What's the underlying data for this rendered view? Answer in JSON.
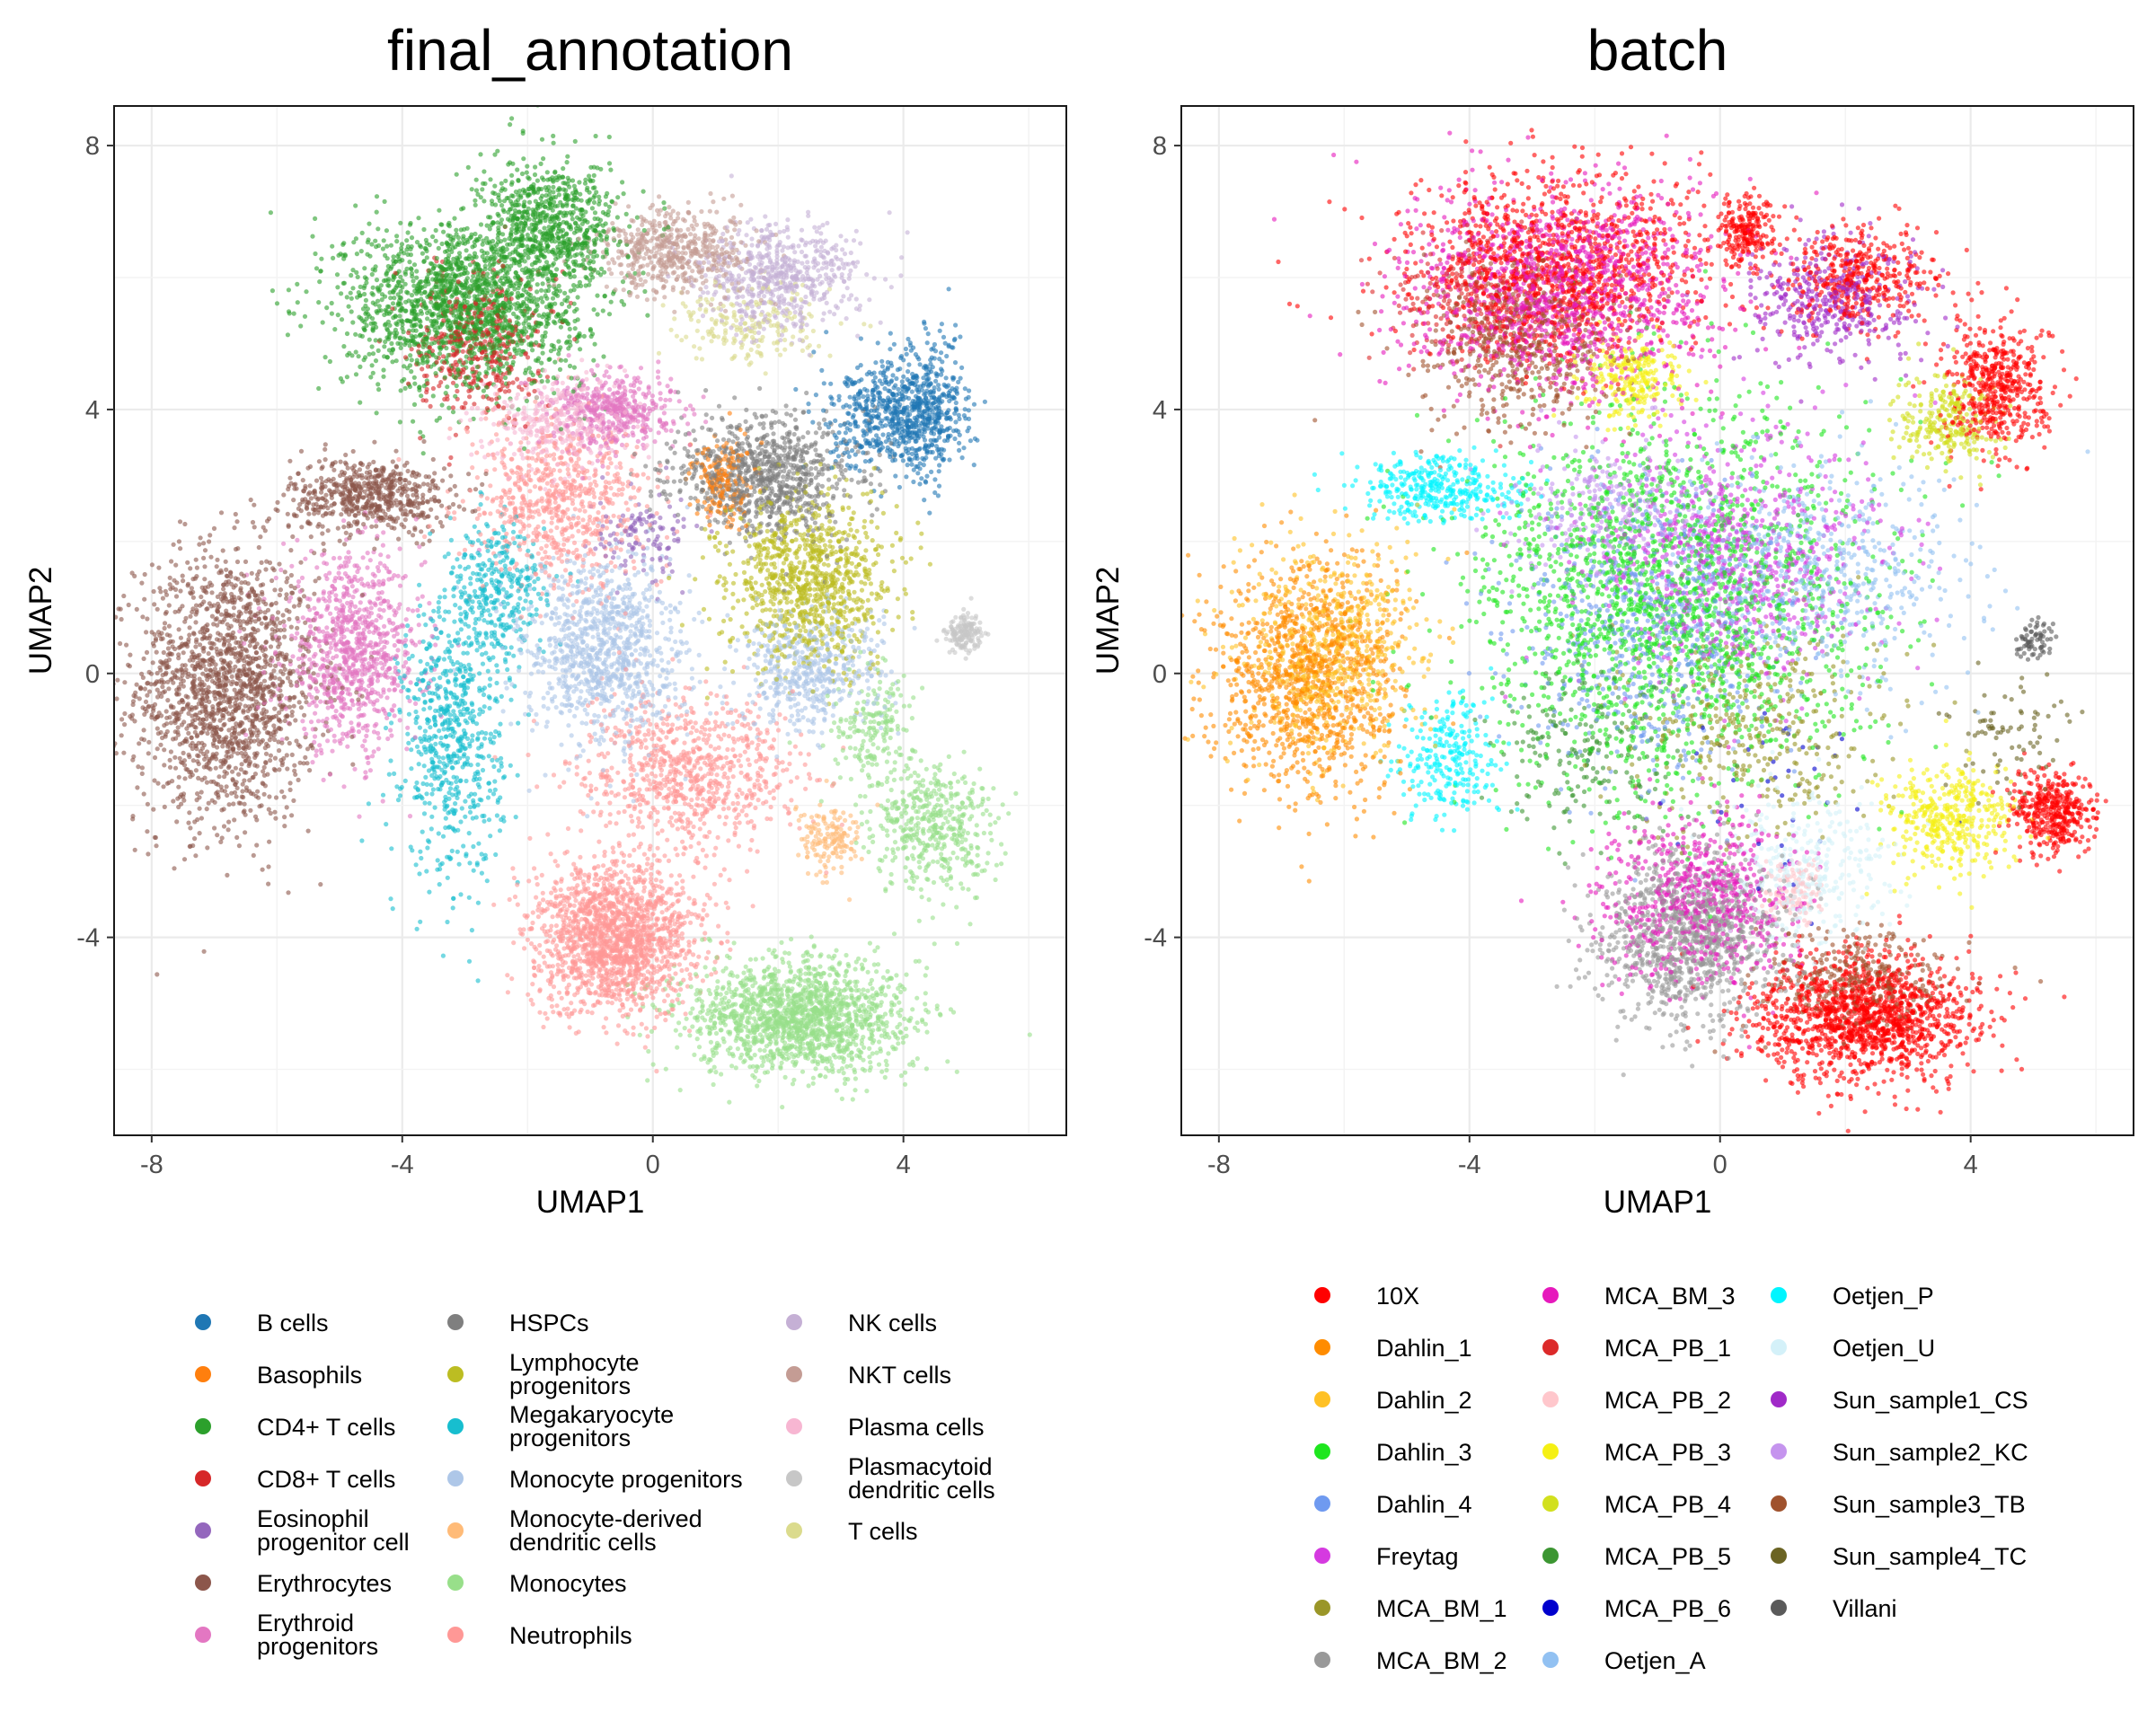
{
  "chart_data": [
    {
      "type": "scatter",
      "title": "final_annotation",
      "xlabel": "UMAP1",
      "ylabel": "UMAP2",
      "xlim": [
        -8.6,
        6.6
      ],
      "ylim": [
        -7.0,
        8.6
      ],
      "xticks": [
        -8,
        -4,
        0,
        4
      ],
      "yticks": [
        -4,
        0,
        4,
        8
      ],
      "tick_labels_x": [
        "-8",
        "-4",
        "0",
        "4"
      ],
      "tick_labels_y": [
        "-4",
        "0",
        "4",
        "8"
      ],
      "grid": true,
      "legend_position": "bottom",
      "legend": [
        {
          "name": "B cells",
          "color": "#1f77b4"
        },
        {
          "name": "Basophils",
          "color": "#ff7f0e"
        },
        {
          "name": "CD4+ T cells",
          "color": "#2ca02c"
        },
        {
          "name": "CD8+ T cells",
          "color": "#d62728"
        },
        {
          "name": "Eosinophil progenitor cell",
          "color": "#9467bd"
        },
        {
          "name": "Erythrocytes",
          "color": "#8c564b"
        },
        {
          "name": "Erythroid progenitors",
          "color": "#e377c2"
        },
        {
          "name": "HSPCs",
          "color": "#7f7f7f"
        },
        {
          "name": "Lymphocyte progenitors",
          "color": "#bcbd22"
        },
        {
          "name": "Megakaryocyte progenitors",
          "color": "#17becf"
        },
        {
          "name": "Monocyte progenitors",
          "color": "#aec7e8"
        },
        {
          "name": "Monocyte-derived dendritic cells",
          "color": "#ffbb78"
        },
        {
          "name": "Monocytes",
          "color": "#98df8a"
        },
        {
          "name": "Neutrophils",
          "color": "#ff9896"
        },
        {
          "name": "NK cells",
          "color": "#c5b0d5"
        },
        {
          "name": "NKT cells",
          "color": "#c49c94"
        },
        {
          "name": "Plasma cells",
          "color": "#f7b6d2"
        },
        {
          "name": "Plasmacytoid dendritic cells",
          "color": "#c7c7c7"
        },
        {
          "name": "T cells",
          "color": "#dbdb8d"
        }
      ],
      "legend_display": [
        [
          "B cells"
        ],
        [
          "Basophils"
        ],
        [
          "CD4+ T cells"
        ],
        [
          "CD8+ T cells"
        ],
        [
          "Eosinophil",
          "progenitor cell"
        ],
        [
          "Erythrocytes"
        ],
        [
          "Erythroid",
          "progenitors"
        ],
        [
          "HSPCs"
        ],
        [
          "Lymphocyte",
          "progenitors"
        ],
        [
          "Megakaryocyte",
          "progenitors"
        ],
        [
          "Monocyte progenitors"
        ],
        [
          "Monocyte-derived",
          "dendritic cells"
        ],
        [
          "Monocytes"
        ],
        [
          "Neutrophils"
        ],
        [
          "NK cells"
        ],
        [
          "NKT cells"
        ],
        [
          "Plasma cells"
        ],
        [
          "Plasmacytoid",
          "dendritic cells"
        ],
        [
          "T cells"
        ]
      ],
      "clusters": [
        {
          "label": "Erythrocytes",
          "cx": -6.8,
          "cy": -0.2,
          "sx": 0.9,
          "sy": 1.3,
          "n": 1700
        },
        {
          "label": "Erythrocytes",
          "cx": -4.5,
          "cy": 2.7,
          "sx": 0.8,
          "sy": 0.35,
          "n": 600
        },
        {
          "label": "Erythroid progenitors",
          "cx": -4.8,
          "cy": 0.3,
          "sx": 0.7,
          "sy": 0.9,
          "n": 900
        },
        {
          "label": "Megakaryocyte progenitors",
          "cx": -3.2,
          "cy": -1.0,
          "sx": 0.5,
          "sy": 1.3,
          "n": 650
        },
        {
          "label": "Megakaryocyte progenitors",
          "cx": -2.5,
          "cy": 1.2,
          "sx": 0.5,
          "sy": 0.7,
          "n": 350
        },
        {
          "label": "CD4+ T cells",
          "cx": -3.0,
          "cy": 5.6,
          "sx": 1.2,
          "sy": 0.8,
          "n": 1800
        },
        {
          "label": "CD4+ T cells",
          "cx": -1.6,
          "cy": 6.8,
          "sx": 0.7,
          "sy": 0.6,
          "n": 700
        },
        {
          "label": "CD8+ T cells",
          "cx": -2.8,
          "cy": 5.0,
          "sx": 0.6,
          "sy": 0.7,
          "n": 400
        },
        {
          "label": "NKT cells",
          "cx": 0.4,
          "cy": 6.4,
          "sx": 0.8,
          "sy": 0.4,
          "n": 550
        },
        {
          "label": "NK cells",
          "cx": 2.0,
          "cy": 6.0,
          "sx": 0.8,
          "sy": 0.5,
          "n": 600
        },
        {
          "label": "B cells",
          "cx": 3.8,
          "cy": 3.9,
          "sx": 0.6,
          "sy": 0.5,
          "n": 550
        },
        {
          "label": "B cells",
          "cx": 4.5,
          "cy": 4.0,
          "sx": 0.35,
          "sy": 0.7,
          "n": 300
        },
        {
          "label": "Plasma cells",
          "cx": -1.5,
          "cy": 3.8,
          "sx": 0.7,
          "sy": 0.45,
          "n": 350
        },
        {
          "label": "Erythroid progenitors",
          "cx": -0.6,
          "cy": 4.0,
          "sx": 0.6,
          "sy": 0.35,
          "n": 450
        },
        {
          "label": "HSPCs",
          "cx": 1.8,
          "cy": 3.0,
          "sx": 0.9,
          "sy": 0.55,
          "n": 900
        },
        {
          "label": "Lymphocyte progenitors",
          "cx": 2.5,
          "cy": 1.4,
          "sx": 0.8,
          "sy": 0.8,
          "n": 950
        },
        {
          "label": "Monocyte progenitors",
          "cx": -0.8,
          "cy": 0.3,
          "sx": 0.8,
          "sy": 0.9,
          "n": 1000
        },
        {
          "label": "Neutrophils",
          "cx": -1.5,
          "cy": 2.6,
          "sx": 0.9,
          "sy": 0.8,
          "n": 700
        },
        {
          "label": "Neutrophils",
          "cx": 0.6,
          "cy": -1.5,
          "sx": 1.1,
          "sy": 0.7,
          "n": 800
        },
        {
          "label": "Neutrophils",
          "cx": -0.6,
          "cy": -4.0,
          "sx": 0.8,
          "sy": 0.7,
          "n": 1700
        },
        {
          "label": "Monocytes",
          "cx": 2.3,
          "cy": -5.2,
          "sx": 1.1,
          "sy": 0.55,
          "n": 1600
        },
        {
          "label": "Monocytes",
          "cx": 4.5,
          "cy": -2.4,
          "sx": 0.6,
          "sy": 0.6,
          "n": 450
        },
        {
          "label": "Monocytes",
          "cx": 3.5,
          "cy": -0.9,
          "sx": 0.4,
          "sy": 0.6,
          "n": 200
        },
        {
          "label": "Monocyte-derived dendritic cells",
          "cx": 2.8,
          "cy": -2.5,
          "sx": 0.3,
          "sy": 0.35,
          "n": 150
        },
        {
          "label": "Monocyte progenitors",
          "cx": 2.5,
          "cy": 0.0,
          "sx": 0.7,
          "sy": 0.6,
          "n": 500
        },
        {
          "label": "Basophils",
          "cx": 1.1,
          "cy": 2.9,
          "sx": 0.3,
          "sy": 0.4,
          "n": 180
        },
        {
          "label": "Plasmacytoid dendritic cells",
          "cx": 5.0,
          "cy": 0.6,
          "sx": 0.18,
          "sy": 0.18,
          "n": 150
        },
        {
          "label": "T cells",
          "cx": 1.5,
          "cy": 5.3,
          "sx": 0.8,
          "sy": 0.4,
          "n": 200
        },
        {
          "label": "Eosinophil progenitor cell",
          "cx": -0.2,
          "cy": 2.1,
          "sx": 0.5,
          "sy": 0.4,
          "n": 120
        }
      ]
    },
    {
      "type": "scatter",
      "title": "batch",
      "xlabel": "UMAP1",
      "ylabel": "UMAP2",
      "xlim": [
        -8.6,
        6.6
      ],
      "ylim": [
        -7.0,
        8.6
      ],
      "xticks": [
        -8,
        -4,
        0,
        4
      ],
      "yticks": [
        -4,
        0,
        4,
        8
      ],
      "tick_labels_x": [
        "-8",
        "-4",
        "0",
        "4"
      ],
      "tick_labels_y": [
        "-4",
        "0",
        "4",
        "8"
      ],
      "grid": true,
      "legend_position": "bottom",
      "legend": [
        {
          "name": "10X",
          "color": "#ff0000"
        },
        {
          "name": "Dahlin_1",
          "color": "#ff8c00"
        },
        {
          "name": "Dahlin_2",
          "color": "#ffc125"
        },
        {
          "name": "Dahlin_3",
          "color": "#1ee61e"
        },
        {
          "name": "Dahlin_4",
          "color": "#6f9af0"
        },
        {
          "name": "Freytag",
          "color": "#d53ae0"
        },
        {
          "name": "MCA_BM_1",
          "color": "#9a9628"
        },
        {
          "name": "MCA_BM_2",
          "color": "#999999"
        },
        {
          "name": "MCA_BM_3",
          "color": "#e619bc"
        },
        {
          "name": "MCA_PB_1",
          "color": "#dc2a2a"
        },
        {
          "name": "MCA_PB_2",
          "color": "#ffc7cc"
        },
        {
          "name": "MCA_PB_3",
          "color": "#f5f014"
        },
        {
          "name": "MCA_PB_4",
          "color": "#d2e01e"
        },
        {
          "name": "MCA_PB_5",
          "color": "#3c9632"
        },
        {
          "name": "MCA_PB_6",
          "color": "#0000cd"
        },
        {
          "name": "Oetjen_A",
          "color": "#92c1f2"
        },
        {
          "name": "Oetjen_P",
          "color": "#00f5ff"
        },
        {
          "name": "Oetjen_U",
          "color": "#d4f1f9"
        },
        {
          "name": "Sun_sample1_CS",
          "color": "#a02ac8"
        },
        {
          "name": "Sun_sample2_KC",
          "color": "#c594ee"
        },
        {
          "name": "Sun_sample3_TB",
          "color": "#a0522d"
        },
        {
          "name": "Sun_sample4_TC",
          "color": "#6b6423"
        },
        {
          "name": "Villani",
          "color": "#5a5a5a"
        }
      ],
      "clusters": [
        {
          "label": "Dahlin_1",
          "cx": -6.6,
          "cy": 0.0,
          "sx": 0.9,
          "sy": 1.1,
          "n": 1100
        },
        {
          "label": "Dahlin_2",
          "cx": -6.2,
          "cy": 0.4,
          "sx": 0.9,
          "sy": 1.0,
          "n": 600
        },
        {
          "label": "Dahlin_3",
          "cx": -0.8,
          "cy": 1.2,
          "sx": 2.0,
          "sy": 1.8,
          "n": 2000
        },
        {
          "label": "Oetjen_P",
          "cx": -4.5,
          "cy": 2.8,
          "sx": 0.8,
          "sy": 0.3,
          "n": 350
        },
        {
          "label": "Oetjen_P",
          "cx": -4.3,
          "cy": -1.3,
          "sx": 0.5,
          "sy": 0.6,
          "n": 250
        },
        {
          "label": "MCA_BM_3",
          "cx": -2.5,
          "cy": 5.8,
          "sx": 1.6,
          "sy": 1.0,
          "n": 1300
        },
        {
          "label": "10X",
          "cx": -2.6,
          "cy": 6.2,
          "sx": 1.5,
          "sy": 0.9,
          "n": 1100
        },
        {
          "label": "Sun_sample3_TB",
          "cx": -3.2,
          "cy": 5.0,
          "sx": 1.0,
          "sy": 0.8,
          "n": 500
        },
        {
          "label": "10X",
          "cx": 0.4,
          "cy": 6.7,
          "sx": 0.3,
          "sy": 0.3,
          "n": 200
        },
        {
          "label": "10X",
          "cx": 2.2,
          "cy": 6.0,
          "sx": 0.8,
          "sy": 0.5,
          "n": 400
        },
        {
          "label": "Sun_sample1_CS",
          "cx": 1.8,
          "cy": 5.6,
          "sx": 0.9,
          "sy": 0.6,
          "n": 400
        },
        {
          "label": "MCA_PB_3",
          "cx": -1.4,
          "cy": 4.5,
          "sx": 0.5,
          "sy": 0.4,
          "n": 250
        },
        {
          "label": "10X",
          "cx": 4.4,
          "cy": 4.3,
          "sx": 0.5,
          "sy": 0.6,
          "n": 500
        },
        {
          "label": "MCA_PB_4",
          "cx": 3.6,
          "cy": 3.8,
          "sx": 0.5,
          "sy": 0.4,
          "n": 250
        },
        {
          "label": "Freytag",
          "cx": 0.2,
          "cy": 1.8,
          "sx": 1.4,
          "sy": 1.2,
          "n": 800
        },
        {
          "label": "Dahlin_4",
          "cx": -1.2,
          "cy": 0.8,
          "sx": 1.4,
          "sy": 1.4,
          "n": 700
        },
        {
          "label": "Oetjen_A",
          "cx": 1.5,
          "cy": 1.5,
          "sx": 1.5,
          "sy": 1.0,
          "n": 600
        },
        {
          "label": "MCA_BM_1",
          "cx": 0.5,
          "cy": -0.8,
          "sx": 1.4,
          "sy": 1.0,
          "n": 400
        },
        {
          "label": "MCA_BM_2",
          "cx": -0.5,
          "cy": -4.0,
          "sx": 0.9,
          "sy": 0.8,
          "n": 1100
        },
        {
          "label": "MCA_BM_3",
          "cx": -0.3,
          "cy": -3.4,
          "sx": 1.0,
          "sy": 0.8,
          "n": 700
        },
        {
          "label": "10X",
          "cx": 2.3,
          "cy": -5.2,
          "sx": 1.1,
          "sy": 0.6,
          "n": 1400
        },
        {
          "label": "10X",
          "cx": 5.3,
          "cy": -2.1,
          "sx": 0.4,
          "sy": 0.4,
          "n": 400
        },
        {
          "label": "Sun_sample3_TB",
          "cx": 2.2,
          "cy": -4.6,
          "sx": 0.9,
          "sy": 0.5,
          "n": 300
        },
        {
          "label": "MCA_PB_3",
          "cx": 3.7,
          "cy": -2.2,
          "sx": 0.6,
          "sy": 0.5,
          "n": 400
        },
        {
          "label": "Oetjen_U",
          "cx": 1.3,
          "cy": -3.0,
          "sx": 0.9,
          "sy": 0.7,
          "n": 350
        },
        {
          "label": "MCA_PB_2",
          "cx": 1.2,
          "cy": -3.3,
          "sx": 0.3,
          "sy": 0.3,
          "n": 120
        },
        {
          "label": "Sun_sample2_KC",
          "cx": -1.8,
          "cy": 2.4,
          "sx": 1.0,
          "sy": 0.7,
          "n": 300
        },
        {
          "label": "MCA_PB_1",
          "cx": -3.8,
          "cy": 5.6,
          "sx": 0.9,
          "sy": 0.6,
          "n": 250
        },
        {
          "label": "MCA_PB_5",
          "cx": -2.2,
          "cy": -1.2,
          "sx": 0.9,
          "sy": 0.8,
          "n": 200
        },
        {
          "label": "Villani",
          "cx": 5.0,
          "cy": 0.5,
          "sx": 0.2,
          "sy": 0.2,
          "n": 70
        },
        {
          "label": "MCA_PB_6",
          "cx": 1.0,
          "cy": -2.0,
          "sx": 1.0,
          "sy": 1.0,
          "n": 40
        },
        {
          "label": "Sun_sample4_TC",
          "cx": 4.5,
          "cy": -1.0,
          "sx": 0.6,
          "sy": 0.6,
          "n": 80
        }
      ]
    }
  ]
}
